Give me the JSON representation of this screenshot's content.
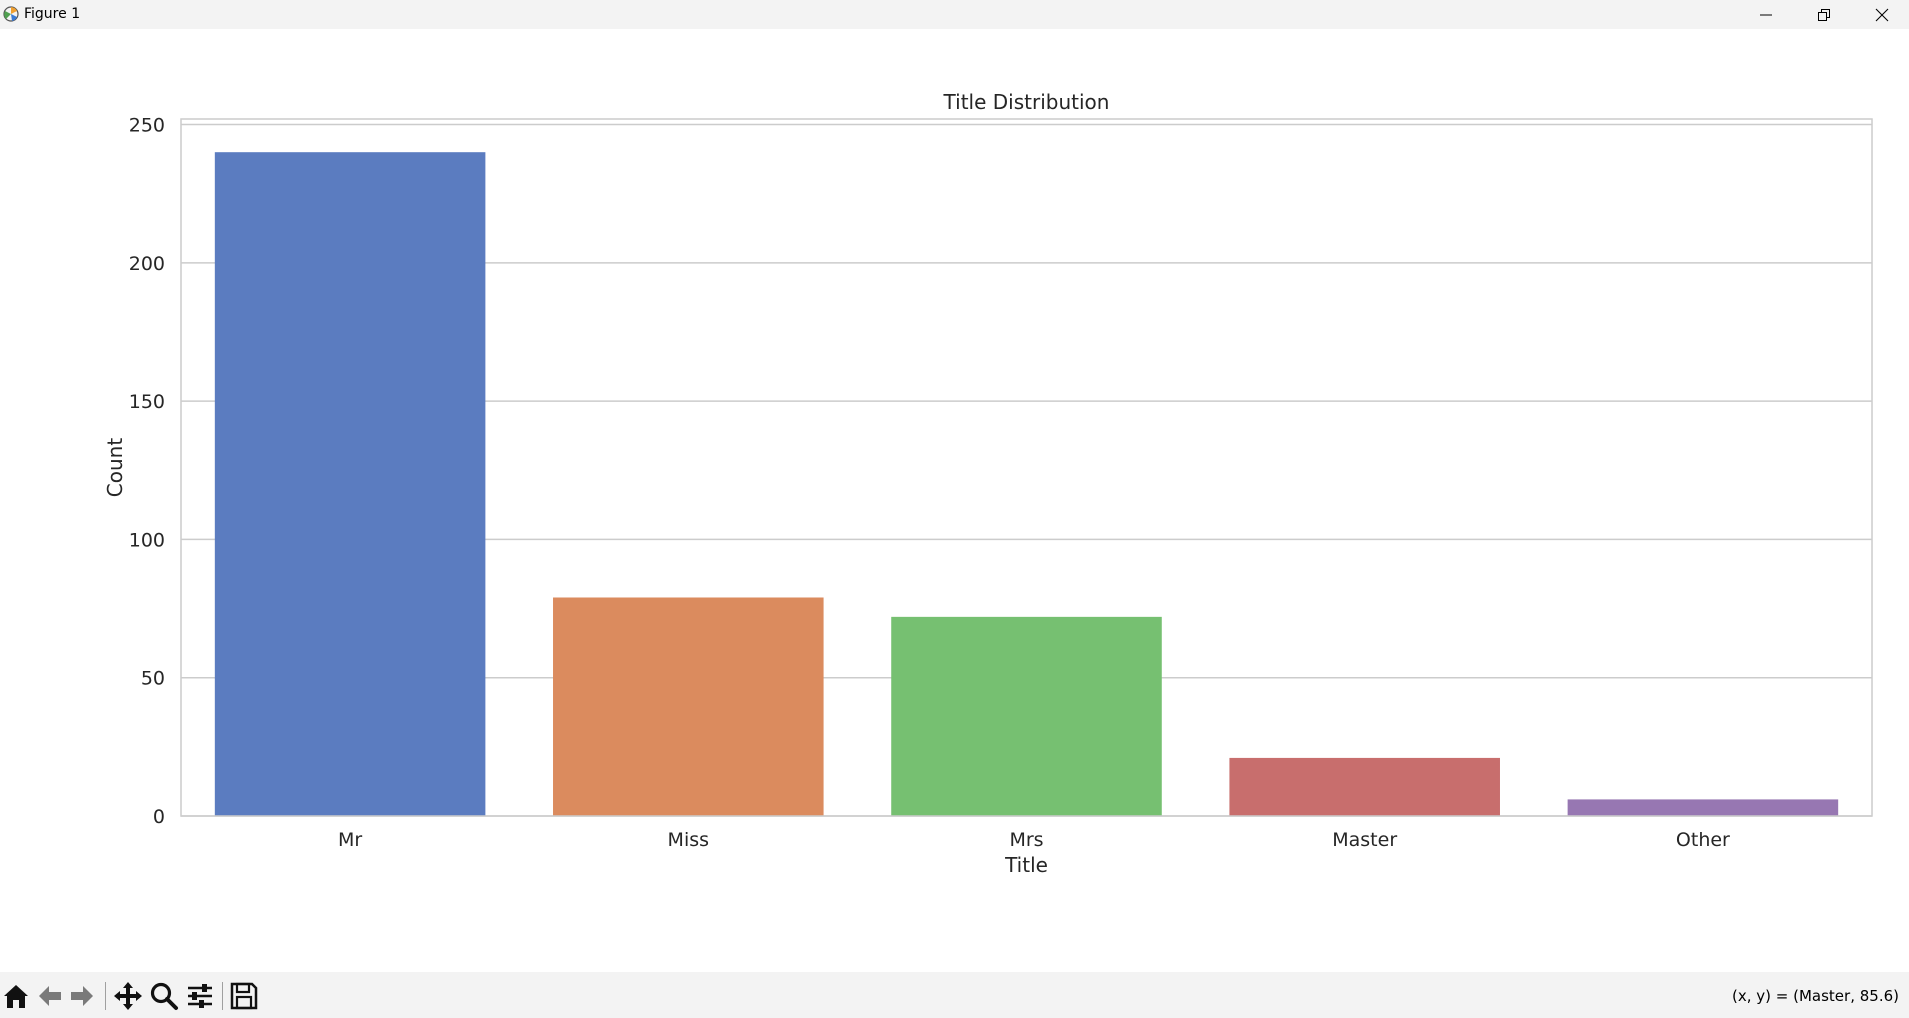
{
  "window": {
    "title": "Figure 1",
    "app_icon": "matplotlib-icon",
    "controls": [
      "minimize-icon",
      "restore-icon",
      "close-icon"
    ]
  },
  "toolbar": {
    "buttons": [
      "home-icon",
      "back-icon",
      "forward-icon",
      "pan-icon",
      "zoom-icon",
      "configure-subplots-icon",
      "save-icon"
    ],
    "coords_text": "(x, y) = (Master, 85.6)"
  },
  "chart_data": {
    "type": "bar",
    "title": "Title Distribution",
    "xlabel": "Title",
    "ylabel": "Count",
    "categories": [
      "Mr",
      "Miss",
      "Mrs",
      "Master",
      "Other"
    ],
    "values": [
      240,
      79,
      72,
      21,
      6
    ],
    "colors": [
      "#5b7cc0",
      "#db8b5e",
      "#76c071",
      "#c86e6d",
      "#9777b2"
    ],
    "ylim": [
      0,
      252
    ],
    "yticks": [
      0,
      50,
      100,
      150,
      200,
      250
    ],
    "grid": true,
    "gridlines": "horizontal",
    "legend": "none"
  }
}
